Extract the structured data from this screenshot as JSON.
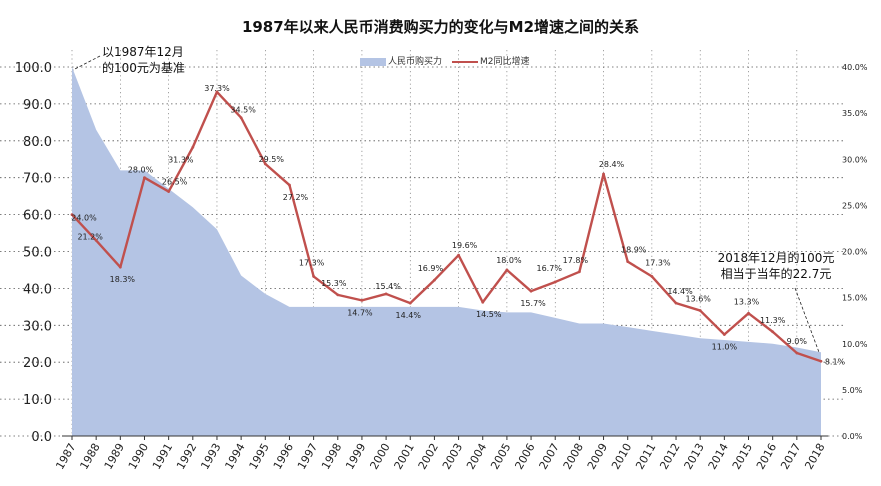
{
  "chart_data": {
    "type": "line",
    "title": "1987年以来人民币消费购买力的变化与M2增速之间的关系",
    "categories": [
      "1987",
      "1988",
      "1989",
      "1990",
      "1991",
      "1992",
      "1993",
      "1994",
      "1995",
      "1996",
      "1997",
      "1998",
      "1999",
      "2000",
      "2001",
      "2002",
      "2003",
      "2004",
      "2005",
      "2006",
      "2007",
      "2008",
      "2009",
      "2010",
      "2011",
      "2012",
      "2013",
      "2014",
      "2015",
      "2016",
      "2017",
      "2018"
    ],
    "series": [
      {
        "name": "人民币购买力",
        "kind": "area",
        "axis": "left",
        "color": "#b4c4e4",
        "values": [
          100.0,
          83.0,
          72.0,
          72.0,
          67.0,
          62.0,
          56.0,
          43.5,
          38.5,
          35.0,
          35.0,
          35.0,
          35.0,
          35.0,
          35.0,
          35.0,
          35.0,
          34.0,
          33.5,
          33.5,
          32.0,
          30.5,
          30.5,
          29.5,
          28.5,
          27.5,
          26.5,
          26.0,
          25.5,
          25.0,
          24.0,
          22.7
        ]
      },
      {
        "name": "M2同比增速",
        "kind": "line",
        "axis": "right",
        "color": "#c0504d",
        "values": [
          24.0,
          21.2,
          18.3,
          28.0,
          26.5,
          31.3,
          37.3,
          34.5,
          29.5,
          27.2,
          17.3,
          15.3,
          14.7,
          15.4,
          14.4,
          16.9,
          19.6,
          14.5,
          18.0,
          15.7,
          16.7,
          17.8,
          28.4,
          18.9,
          17.3,
          14.4,
          13.6,
          11.0,
          13.3,
          11.3,
          9.0,
          8.1
        ],
        "labels": [
          "24.0%",
          "21.2%",
          "18.3%",
          "28.0%",
          "26.5%",
          "31.3%",
          "37.3%",
          "34.5%",
          "29.5%",
          "27.2%",
          "17.3%",
          "15.3%",
          "14.7%",
          "15.4%",
          "14.4%",
          "16.9%",
          "19.6%",
          "14.5%",
          "18.0%",
          "15.7%",
          "16.7%",
          "17.8%",
          "28.4%",
          "18.9%",
          "17.3%",
          "14.4%",
          "13.6%",
          "11.0%",
          "13.3%",
          "11.3%",
          "9.0%",
          "8.1%"
        ]
      }
    ],
    "y_left": {
      "min": 0,
      "max": 100,
      "step": 10,
      "ticks": [
        "0.0",
        "10.0",
        "20.0",
        "30.0",
        "40.0",
        "50.0",
        "60.0",
        "70.0",
        "80.0",
        "90.0",
        "100.0"
      ]
    },
    "y_right": {
      "min": 0,
      "max": 40,
      "step": 5,
      "ticks": [
        "0.0%",
        "5.0%",
        "10.0%",
        "15.0%",
        "20.0%",
        "25.0%",
        "30.0%",
        "35.0%",
        "40.0%"
      ]
    },
    "grid": true,
    "legend_position": "top-center",
    "annotations": [
      {
        "id": "left",
        "text_lines": [
          "以1987年12月",
          "的100元为基准"
        ],
        "points_to": "1987"
      },
      {
        "id": "right",
        "text_lines": [
          "2018年12月的100元",
          "相当于当年的22.7元"
        ],
        "points_to": "2018"
      }
    ]
  }
}
